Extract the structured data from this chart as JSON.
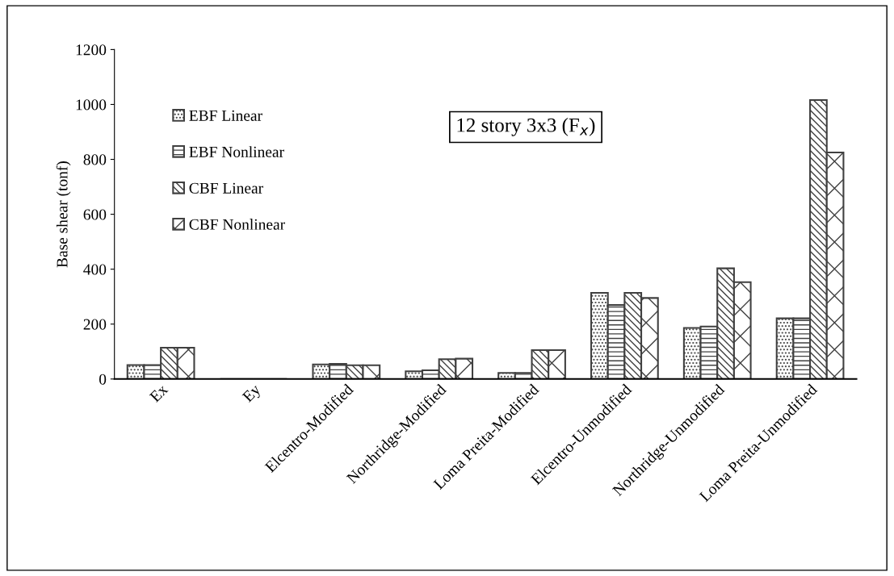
{
  "chart_data": {
    "type": "bar",
    "ylabel": "Base shear (tonf)",
    "categories": [
      "Ex",
      "Ey",
      "Elcentro-Modified",
      "Northridge-Modified",
      "Loma Preita-Modified",
      "Elcentro-Unmodified",
      "Northridge-Unmodified",
      "Loma Preita-Unmodified"
    ],
    "series": [
      {
        "name": "EBF Linear",
        "color": "#404040",
        "values": [
          51,
          0,
          53,
          28,
          22,
          314,
          186,
          221
        ]
      },
      {
        "name": "EBF Nonlinear",
        "color": "#404040",
        "values": [
          51,
          0,
          55,
          32,
          22,
          270,
          191,
          221
        ]
      },
      {
        "name": "CBF Linear",
        "color": "#404040",
        "values": [
          114,
          0,
          50,
          72,
          105,
          314,
          403,
          1016
        ]
      },
      {
        "name": "CBF Nonlinear",
        "color": "#404040",
        "values": [
          114,
          0,
          50,
          74,
          105,
          295,
          353,
          825
        ]
      }
    ],
    "ylim": [
      0,
      1200
    ],
    "yticks": [
      0,
      200,
      400,
      600,
      800,
      1000,
      1200
    ],
    "grid": false,
    "legend": "top left",
    "annotations": [
      "12 story 3x3 (F$_{x}$)"
    ]
  }
}
